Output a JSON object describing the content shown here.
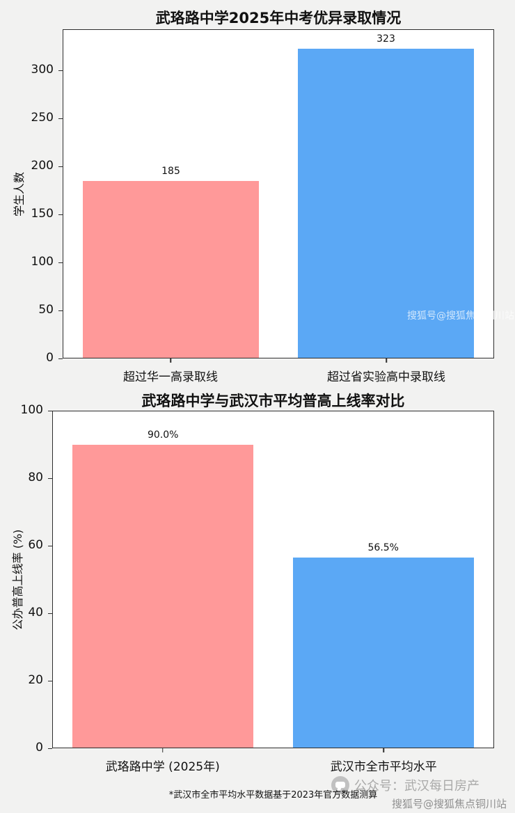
{
  "colors": {
    "pink": "#FF9999",
    "blue": "#5BA8F5",
    "axis": "#2e2e2e",
    "plot_bg": "#ffffff",
    "page_bg": "#f2f2f1"
  },
  "chart_data": [
    {
      "type": "bar",
      "title": "武珞路中学2025年中考优异录取情况",
      "categories": [
        "超过华一高录取线",
        "超过省实验高中录取线"
      ],
      "values": [
        185,
        323
      ],
      "value_labels": [
        "185",
        "323"
      ],
      "bar_colors": [
        "#FF9999",
        "#5BA8F5"
      ],
      "xlabel": "",
      "ylabel": "学生人数",
      "ylim": [
        0,
        343
      ],
      "yticks": [
        0,
        50,
        100,
        150,
        200,
        250,
        300
      ],
      "grid": false,
      "legend": null
    },
    {
      "type": "bar",
      "title": "武珞路中学与武汉市平均普高上线率对比",
      "categories": [
        "武珞路中学 (2025年)",
        "武汉市全市平均水平"
      ],
      "values": [
        90.0,
        56.5
      ],
      "value_labels": [
        "90.0%",
        "56.5%"
      ],
      "bar_colors": [
        "#FF9999",
        "#5BA8F5"
      ],
      "xlabel": "",
      "ylabel": "公办普高上线率 (%)",
      "ylim": [
        0,
        100
      ],
      "yticks": [
        0,
        20,
        40,
        60,
        80,
        100
      ],
      "grid": false,
      "legend": null
    }
  ],
  "footnote": "*武汉市全市平均水平数据基于2023年官方数据测算",
  "watermarks": {
    "mid_right": "搜狐号@搜狐焦点铜川站",
    "bottom_center": "公众号：武汉每日房产",
    "bottom_center_icon": "chat-bubble-icon",
    "bottom_right": "搜狐号@搜狐焦点铜川站"
  }
}
